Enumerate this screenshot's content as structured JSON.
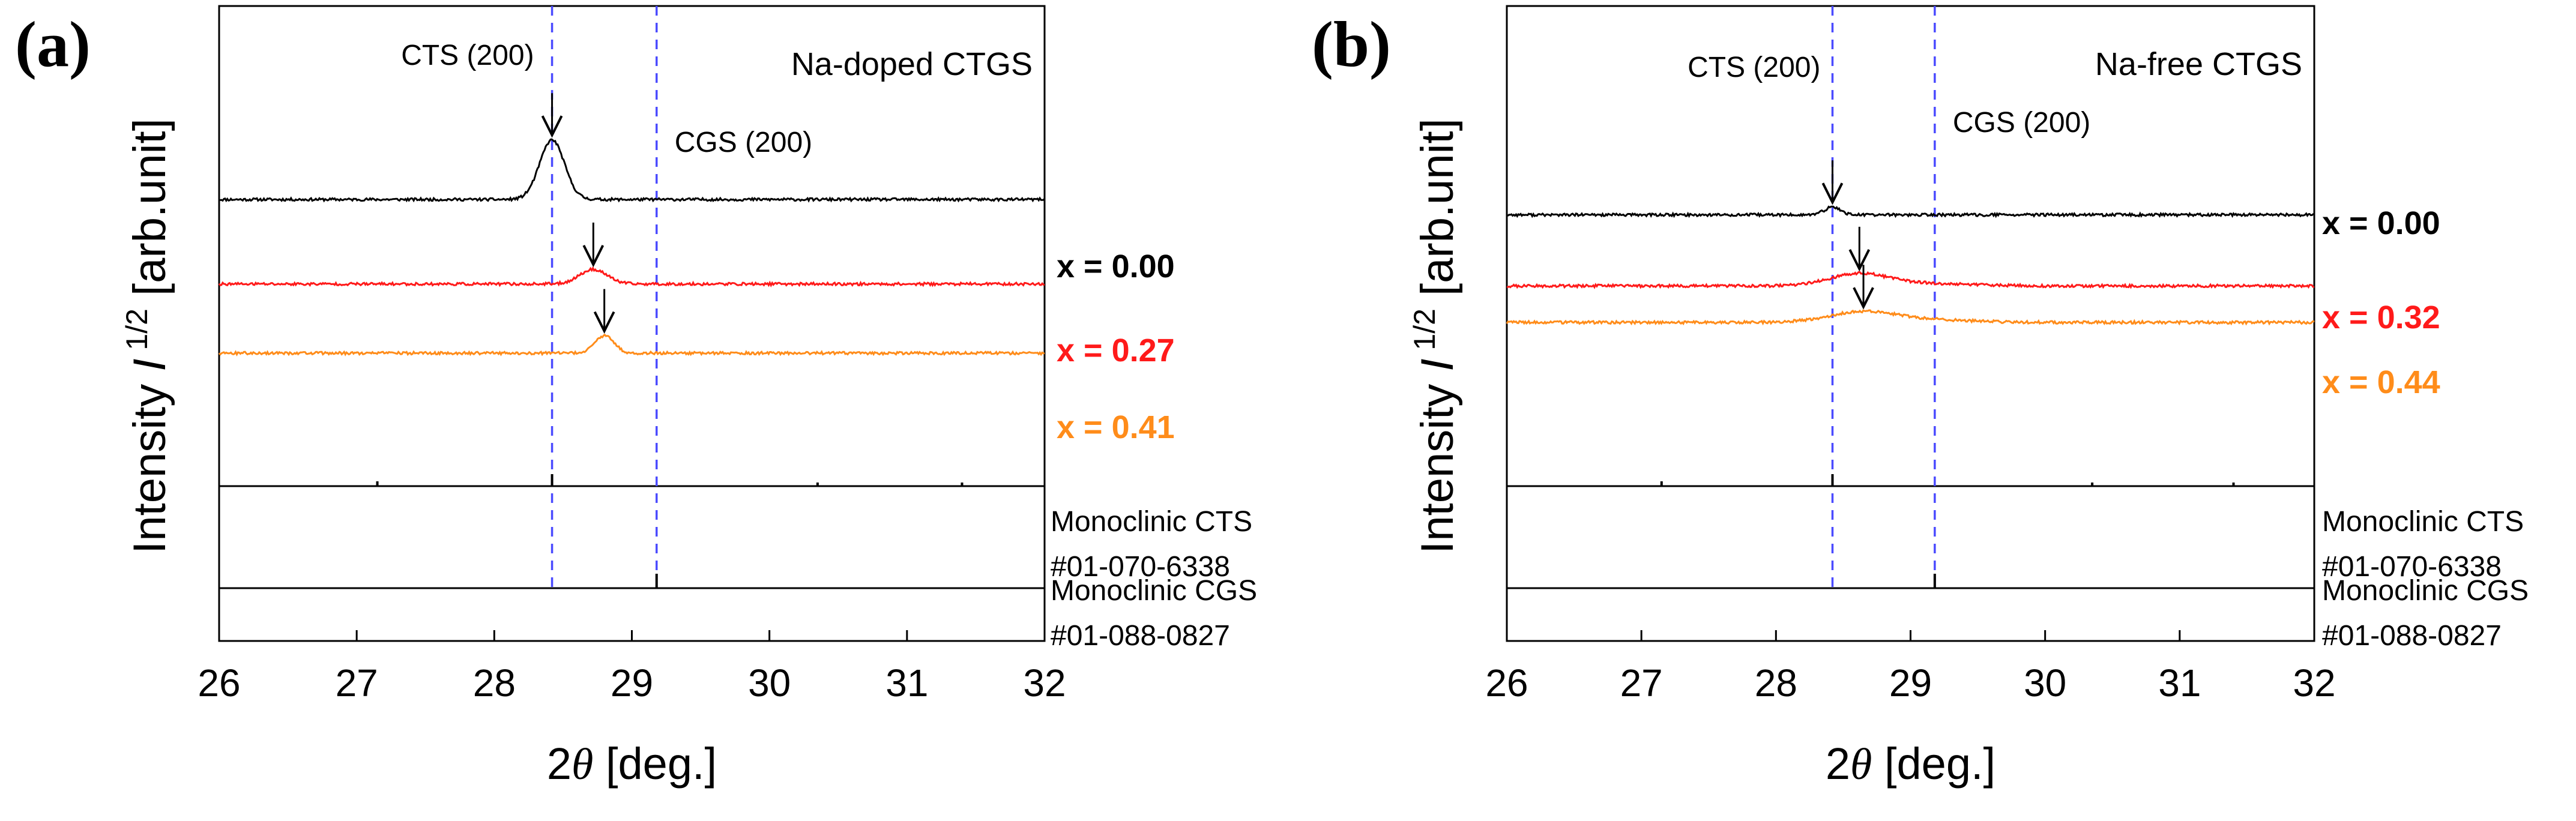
{
  "chart_data": [
    {
      "type": "line",
      "panel_label": "(a)",
      "sample": "Na-doped CTGS",
      "xlabel_prefix": "2",
      "xlabel_symbol": "θ",
      "xlabel_suffix": " [deg.]",
      "ylabel_text": "Intensity ",
      "ylabel_symbol": "I",
      "ylabel_exp": " 1/2",
      "ylabel_unit": " [arb.unit]",
      "xlim": [
        26,
        32
      ],
      "x_ticks": [
        "26",
        "27",
        "28",
        "29",
        "30",
        "31",
        "32"
      ],
      "ylim": [
        0,
        10
      ],
      "reference_lines": [
        {
          "label": "CTS (200)",
          "x": 28.42
        },
        {
          "label": "CGS (200)",
          "x": 29.18
        }
      ],
      "series": [
        {
          "name": "x = 0.00",
          "color": "#000000",
          "baseline": 7.15,
          "peak_x": 28.42,
          "peak_height": 1.55,
          "peak_width": 0.09
        },
        {
          "name": "x = 0.27",
          "color": "#ff1a1a",
          "baseline": 4.95,
          "peak_x": 28.72,
          "peak_height": 0.38,
          "peak_width": 0.1
        },
        {
          "name": "x = 0.41",
          "color": "#ff8c1a",
          "baseline": 3.15,
          "peak_x": 28.8,
          "peak_height": 0.45,
          "peak_width": 0.07
        }
      ],
      "references": [
        {
          "name_line1": "Monoclinic CTS",
          "name_line2": "#01-070-6338",
          "sticks": [
            {
              "x": 27.15,
              "h": 0.04
            },
            {
              "x": 28.42,
              "h": 0.1
            },
            {
              "x": 30.35,
              "h": 0.03
            },
            {
              "x": 31.4,
              "h": 0.03
            }
          ]
        },
        {
          "name_line1": "Monoclinic CGS",
          "name_line2": "#01-088-0827",
          "sticks": [
            {
              "x": 29.18,
              "h": 0.12
            }
          ]
        }
      ]
    },
    {
      "type": "line",
      "panel_label": "(b)",
      "sample": "Na-free CTGS",
      "xlabel_prefix": "2",
      "xlabel_symbol": "θ",
      "xlabel_suffix": " [deg.]",
      "ylabel_text": "Intensity ",
      "ylabel_symbol": "I",
      "ylabel_exp": " 1/2",
      "ylabel_unit": " [arb.unit]",
      "xlim": [
        26,
        32
      ],
      "x_ticks": [
        "26",
        "27",
        "28",
        "29",
        "30",
        "31",
        "32"
      ],
      "ylim": [
        0,
        10
      ],
      "reference_lines": [
        {
          "label": "CTS (200)",
          "x": 28.42
        },
        {
          "label": "CGS (200)",
          "x": 29.18
        }
      ],
      "series": [
        {
          "name": "x = 0.00",
          "color": "#000000",
          "baseline": 6.75,
          "peak_x": 28.42,
          "peak_height": 0.2,
          "peak_width": 0.06
        },
        {
          "name": "x = 0.32",
          "color": "#ff1a1a",
          "baseline": 4.9,
          "peak_x": 28.62,
          "peak_height": 0.32,
          "peak_width": 0.22
        },
        {
          "name": "x = 0.44",
          "color": "#ff8c1a",
          "baseline": 3.95,
          "peak_x": 28.65,
          "peak_height": 0.28,
          "peak_width": 0.25
        }
      ],
      "references": [
        {
          "name_line1": "Monoclinic CTS",
          "name_line2": "#01-070-6338",
          "sticks": [
            {
              "x": 27.15,
              "h": 0.04
            },
            {
              "x": 28.42,
              "h": 0.1
            },
            {
              "x": 30.35,
              "h": 0.03
            },
            {
              "x": 31.4,
              "h": 0.03
            }
          ]
        },
        {
          "name_line1": "Monoclinic CGS",
          "name_line2": "#01-088-0827",
          "sticks": [
            {
              "x": 29.18,
              "h": 0.12
            }
          ]
        }
      ]
    }
  ]
}
